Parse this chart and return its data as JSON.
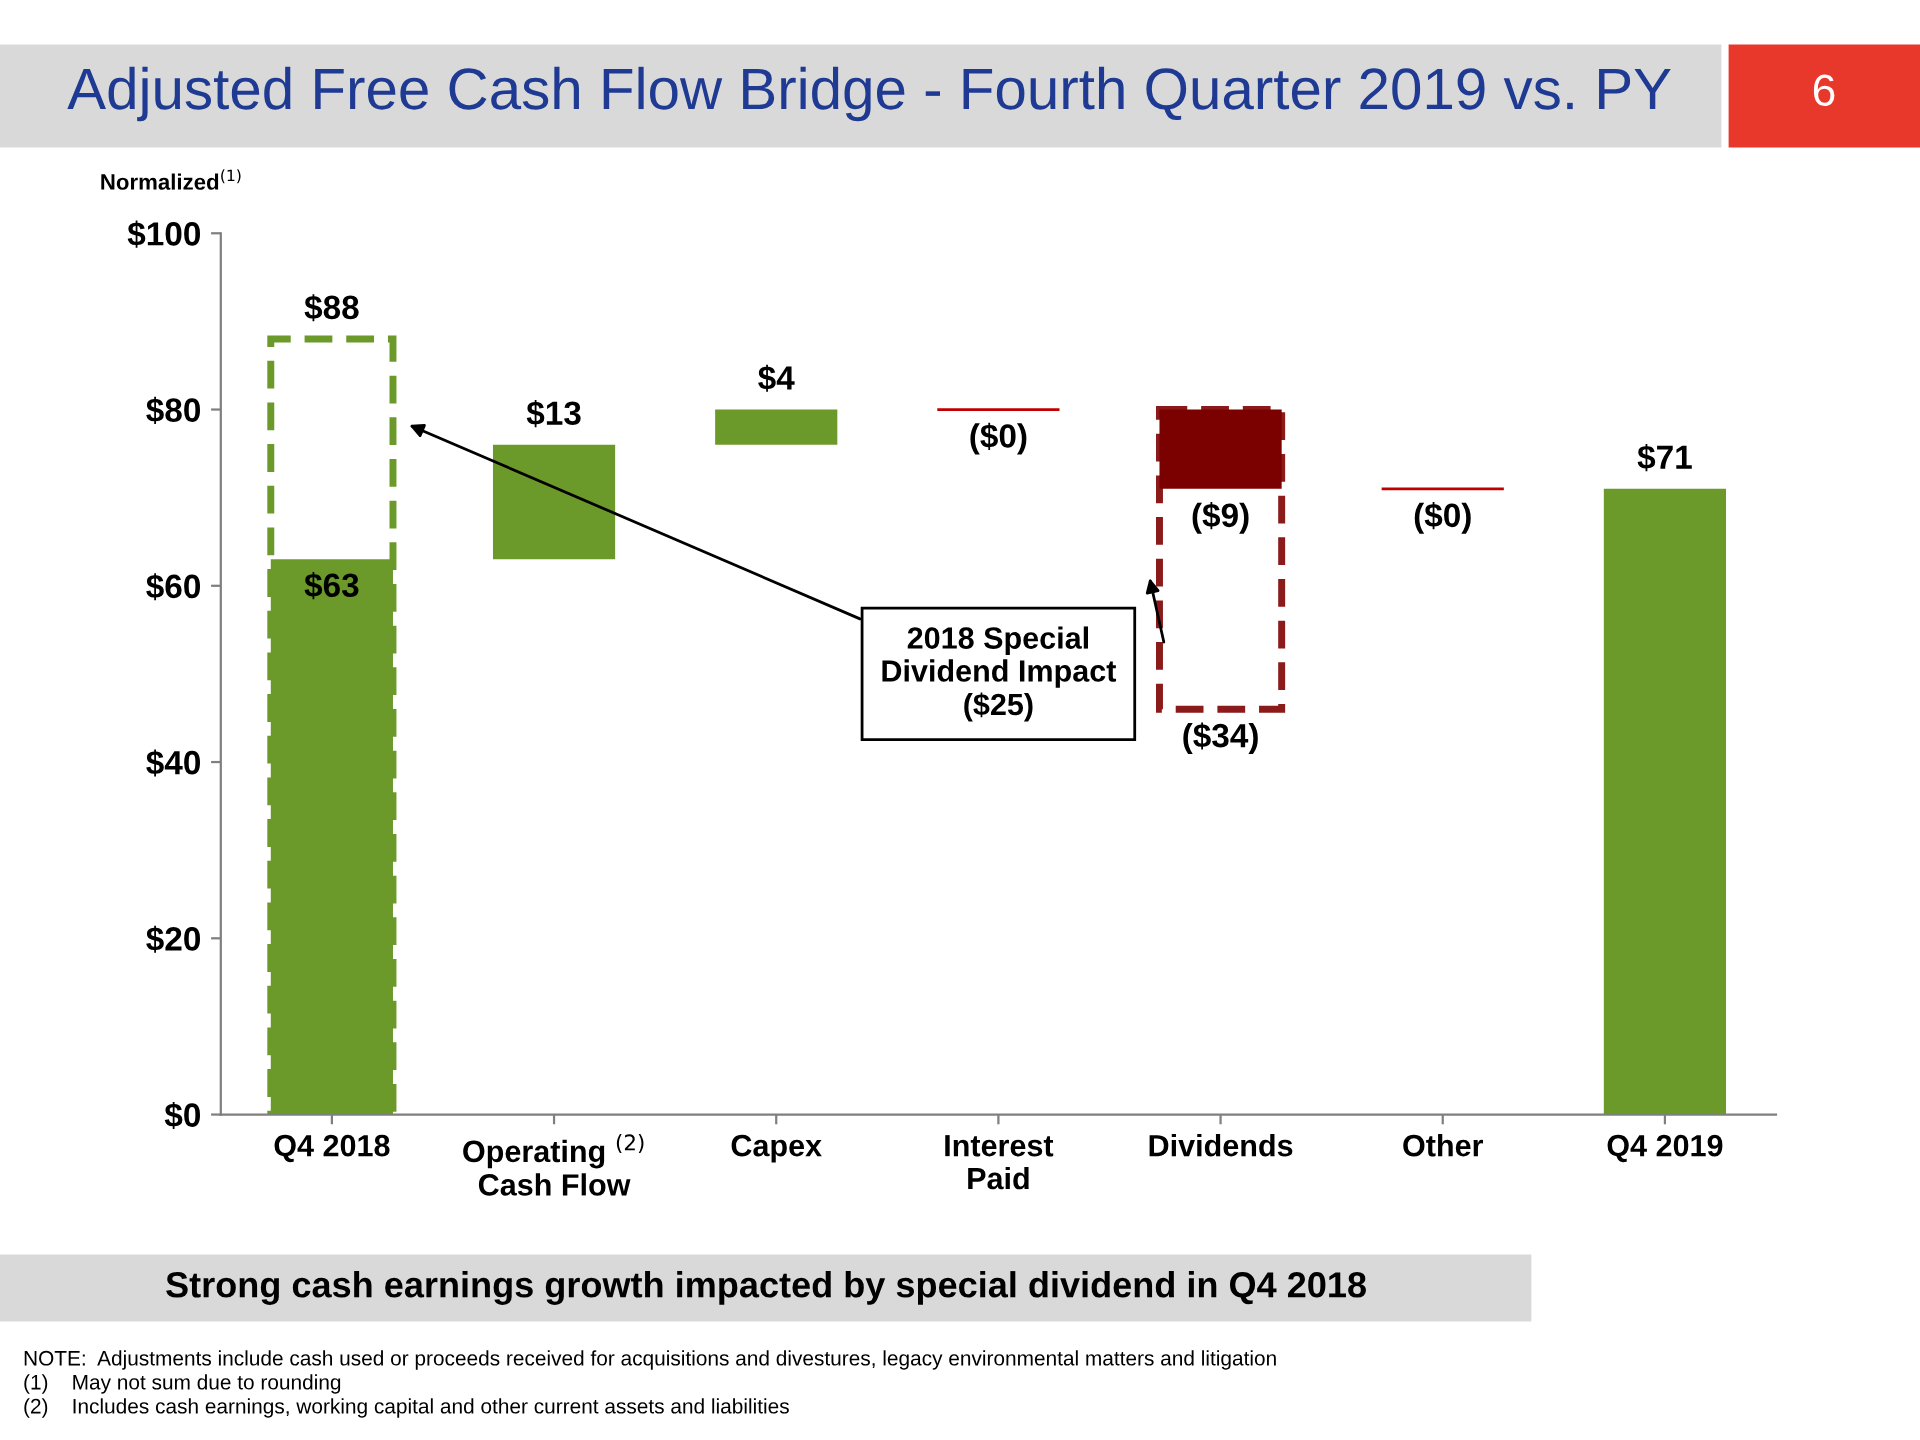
{
  "chart_data": {
    "type": "bar",
    "title": "Adjusted Free Cash Flow Bridge - Fourth Quarter 2019 vs. PY",
    "subtitle": "Strong cash earnings growth impacted by special dividend in Q4 2018",
    "ylabel": "Normalized$^{(1)}$",
    "categories": [
      "Q4 2018",
      "Operating $^{(2)}$\nCash Flow",
      "Capex",
      "Interest\nPaid",
      "Dividends",
      "Other",
      "Q4 2019"
    ],
    "series": [
      {
        "colors": [
          "#6b9a2b",
          "#6b9a2b",
          "#6b9a2b",
          "#c00000",
          "#7b0000",
          "#c00000",
          "#6b9a2b"
        ],
        "base": [
          0,
          63,
          76,
          80,
          80,
          71,
          0
        ],
        "values": [
          63,
          13,
          4,
          0,
          -9,
          0,
          71
        ],
        "value_labels": [
          "$63",
          "$13",
          "$4",
          "($0)",
          "($9)",
          "($0)",
          "$71"
        ]
      },
      {
        "line_style": "dashed",
        "colors": [
          "#6b9a2b",
          null,
          null,
          null,
          "#8b1a1a",
          null,
          null
        ],
        "base": [
          0,
          null,
          null,
          null,
          80,
          null,
          null
        ],
        "values": [
          88,
          null,
          null,
          null,
          -34,
          null,
          null
        ],
        "value_labels": [
          "$88",
          null,
          null,
          null,
          "($34)",
          null,
          null
        ]
      }
    ],
    "ylim": [
      0,
      100
    ],
    "yticks": [
      {
        "value": 0,
        "label": "$0"
      },
      {
        "value": 20,
        "label": "$20"
      },
      {
        "value": 40,
        "label": "$40"
      },
      {
        "value": 60,
        "label": "$60"
      },
      {
        "value": 80,
        "label": "$80"
      },
      {
        "value": 100,
        "label": "$100"
      }
    ],
    "grid": false,
    "legend": false,
    "annotations": [
      "2018 Special\nDividend Impact\n($25)",
      "6",
      "NOTE:  Adjustments include cash used or proceeds received for acquisitions and divestures, legacy environmental matters and litigation",
      "(1)    May not sum due to rounding",
      "(2)    Includes cash earnings, working capital and other current assets and liabilities"
    ]
  }
}
